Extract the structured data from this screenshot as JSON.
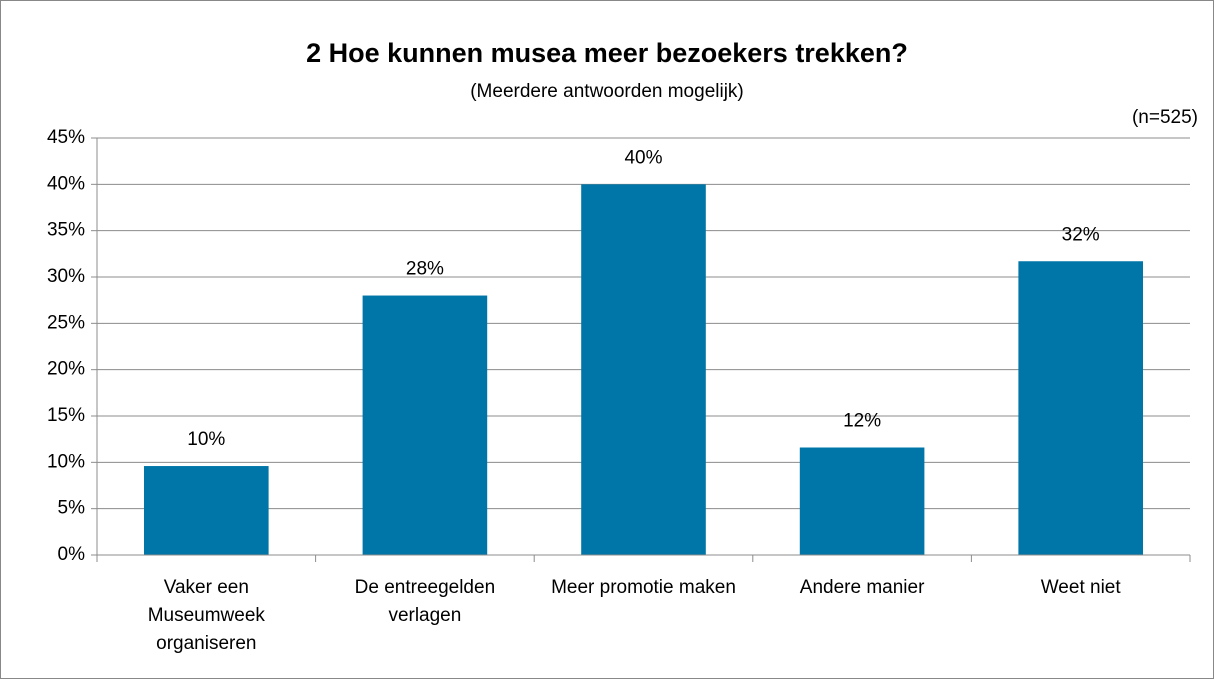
{
  "chart_data": {
    "type": "bar",
    "title": "2 Hoe kunnen musea meer bezoekers trekken?",
    "subtitle": "(Meerdere antwoorden mogelijk)",
    "annotation": "(n=525)",
    "categories": [
      "Vaker een Museumweek organiseren",
      "De entreegelden verlagen",
      "Meer promotie maken",
      "Andere manier",
      "Weet niet"
    ],
    "values": [
      9.6,
      28.0,
      40.0,
      11.6,
      31.7
    ],
    "value_labels": [
      "10%",
      "28%",
      "40%",
      "12%",
      "32%"
    ],
    "color": "#0076a8",
    "ylim": [
      0,
      45
    ],
    "yticks": [
      {
        "value": 0,
        "label": "0%"
      },
      {
        "value": 5,
        "label": "5%"
      },
      {
        "value": 10,
        "label": "10%"
      },
      {
        "value": 15,
        "label": "15%"
      },
      {
        "value": 20,
        "label": "20%"
      },
      {
        "value": 25,
        "label": "25%"
      },
      {
        "value": 30,
        "label": "30%"
      },
      {
        "value": 35,
        "label": "35%"
      },
      {
        "value": 40,
        "label": "40%"
      },
      {
        "value": 45,
        "label": "45%"
      }
    ],
    "grid": true
  }
}
